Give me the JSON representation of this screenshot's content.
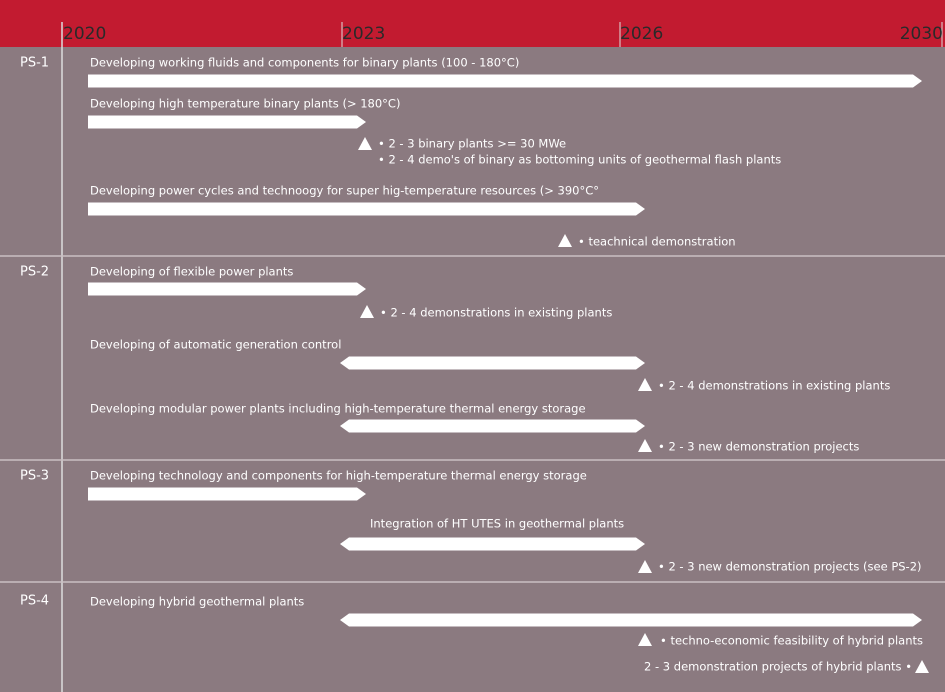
{
  "timeline": {
    "years": [
      "2020",
      "2023",
      "2026",
      "2030"
    ]
  },
  "phases": [
    {
      "label": "PS-1",
      "items": [
        {
          "title": "Developing working fluids and components for binary plants (100 - 180°C)",
          "milestones": []
        },
        {
          "title": "Developing high temperature binary plants (> 180°C)",
          "milestones": [
            "• 2 - 3 binary plants >= 30 MWe",
            "• 2 - 4 demo's of binary as bottoming units of geothermal flash plants"
          ]
        },
        {
          "title": "Developing power cycles and technoogy for super hig-temperature resources (> 390°C°",
          "milestones": [
            "• teachnical demonstration"
          ]
        }
      ]
    },
    {
      "label": "PS-2",
      "items": [
        {
          "title": "Developing of flexible power plants",
          "milestones": [
            "• 2 - 4 demonstrations in existing plants"
          ]
        },
        {
          "title": "Developing of automatic generation control",
          "milestones": [
            "• 2 - 4 demonstrations in existing plants"
          ]
        },
        {
          "title": "Developing modular power plants including high-temperature thermal energy storage",
          "milestones": [
            "• 2 - 3 new demonstration projects"
          ]
        }
      ]
    },
    {
      "label": "PS-3",
      "items": [
        {
          "title": "Developing technology and components for high-temperature thermal energy storage",
          "milestones": []
        },
        {
          "title": "Integration of HT UTES in geothermal plants",
          "milestones": [
            "• 2 - 3 new demonstration projects (see PS-2)"
          ]
        }
      ]
    },
    {
      "label": "PS-4",
      "items": [
        {
          "title": "Developing hybrid geothermal plants",
          "milestones": [
            "•  techno-economic feasibility of hybrid plants",
            "2 - 3 demonstration projects of hybrid plants •"
          ]
        }
      ]
    }
  ]
}
